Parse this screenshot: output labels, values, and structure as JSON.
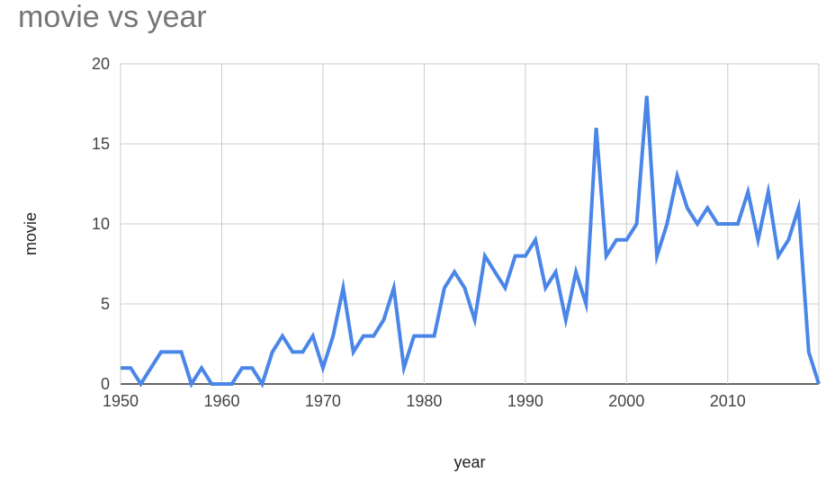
{
  "chart_data": {
    "type": "line",
    "title": "movie vs year",
    "xlabel": "year",
    "ylabel": "movie",
    "xlim": [
      1950,
      2019
    ],
    "ylim": [
      0,
      20
    ],
    "x_ticks": [
      1950,
      1960,
      1970,
      1980,
      1990,
      2000,
      2010
    ],
    "y_ticks": [
      0,
      5,
      10,
      15,
      20
    ],
    "grid": true,
    "legend": "none",
    "series": [
      {
        "color": "#4a86e8",
        "x": [
          1950,
          1951,
          1952,
          1953,
          1954,
          1955,
          1956,
          1957,
          1958,
          1959,
          1960,
          1961,
          1962,
          1963,
          1964,
          1965,
          1966,
          1967,
          1968,
          1969,
          1970,
          1971,
          1972,
          1973,
          1974,
          1975,
          1976,
          1977,
          1978,
          1979,
          1980,
          1981,
          1982,
          1983,
          1984,
          1985,
          1986,
          1987,
          1988,
          1989,
          1990,
          1991,
          1992,
          1993,
          1994,
          1995,
          1996,
          1997,
          1998,
          1999,
          2000,
          2001,
          2002,
          2003,
          2004,
          2005,
          2006,
          2007,
          2008,
          2009,
          2010,
          2011,
          2012,
          2013,
          2014,
          2015,
          2016,
          2017,
          2018,
          2019
        ],
        "y": [
          1,
          1,
          0,
          1,
          2,
          2,
          2,
          0,
          1,
          0,
          0,
          0,
          1,
          1,
          0,
          2,
          3,
          2,
          2,
          3,
          1,
          3,
          6,
          2,
          3,
          3,
          4,
          6,
          1,
          3,
          3,
          3,
          6,
          7,
          6,
          4,
          8,
          7,
          6,
          8,
          8,
          9,
          6,
          7,
          4,
          7,
          5,
          16,
          8,
          9,
          9,
          10,
          18,
          8,
          10,
          13,
          11,
          10,
          11,
          10,
          10,
          10,
          12,
          9,
          12,
          8,
          9,
          11,
          2,
          0
        ]
      }
    ]
  }
}
